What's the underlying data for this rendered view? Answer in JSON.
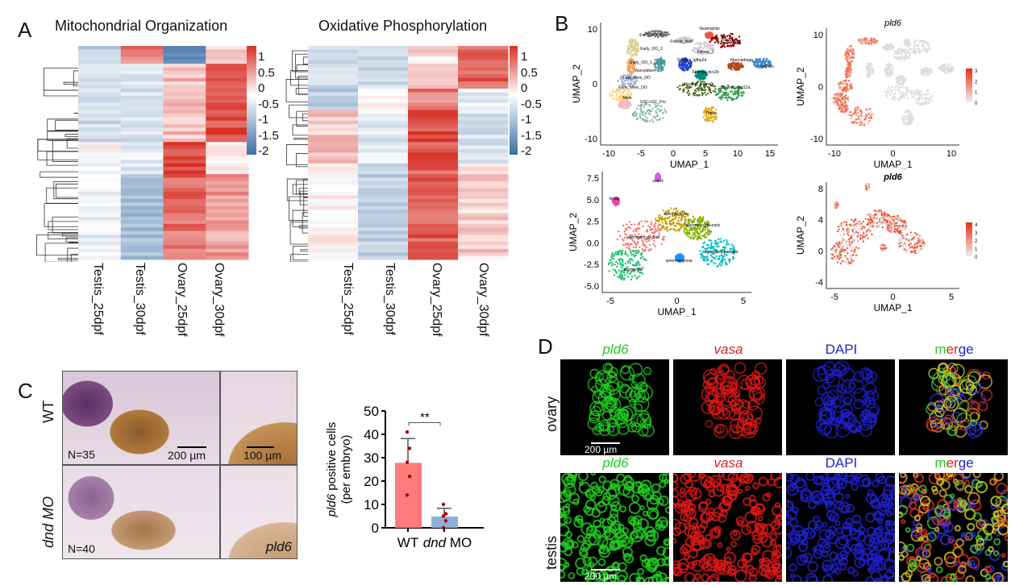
{
  "panels": {
    "a": "A",
    "b": "B",
    "c": "C",
    "d": "D"
  },
  "panel_a": {
    "heatmaps": [
      {
        "title": "Mitochondrial  Organization",
        "columns": [
          "Testis_25dpf",
          "Testis_30dpf",
          "Ovary_25dpf",
          "Ovary_30dpf"
        ]
      },
      {
        "title": "Oxidative  Phosphorylation",
        "columns": [
          "Testis_25dpf",
          "Testis_30dpf",
          "Ovary_25dpf",
          "Ovary_30dpf"
        ]
      }
    ],
    "colorbar_ticks": [
      "1",
      "0.5",
      "0",
      "-0.5",
      "-1",
      "-1.5",
      "-2"
    ],
    "colors": {
      "high": "#d73027",
      "mid": "#ffffff",
      "low": "#3a6ea5"
    }
  },
  "panel_b": {
    "ovary_umap": {
      "xlabel": "UMAP_1",
      "ylabel": "UMAP_2",
      "xticks": [
        "-10",
        "-5",
        "0",
        "5",
        "10",
        "15"
      ],
      "yticks": [
        "10",
        "0",
        "-10"
      ],
      "clusters": [
        "Neutrophils",
        "Early_OO_3",
        "Follicle_lhx9",
        "Follicle_1",
        "Early_OO_2",
        "Follicle_2",
        "Early_OO_1",
        "Stromal_igfbp24",
        "Macrophage",
        "NK-like",
        "Vasculature",
        "Stromal_dcx2b",
        "Late_Meio_OO",
        "Stromal_gramd3",
        "Early_Meio_OO",
        "Stromal_cxcl12a",
        "Meio",
        "GSC+GC_Pro",
        "Theca"
      ]
    },
    "ovary_feature": {
      "title": "pld6",
      "xlabel": "UMAP_1",
      "ylabel": "UMAP_2",
      "xticks": [
        "-10",
        "0",
        "10"
      ],
      "yticks": [
        "10",
        "0",
        "-10"
      ],
      "legend": [
        "3",
        "2",
        "1",
        "0"
      ]
    },
    "testis_umap": {
      "xlabel": "UMAP_1",
      "ylabel": "UMAP_2",
      "xticks": [
        "-5",
        "0",
        "5"
      ],
      "yticks": [
        "7.5",
        "5.0",
        "2.5",
        "0.0",
        "-2.5",
        "-5.0"
      ],
      "clusters": [
        "sertoli",
        "leydig",
        "spermatocyte",
        "spermatocyte-early",
        "spermatocyte-late",
        "spermatogonia-late",
        "spermatogonia",
        "spermatids"
      ]
    },
    "testis_feature": {
      "title": "pld6",
      "xlabel": "UMAP_1",
      "ylabel": "UMAP_2",
      "xticks": [
        "-5",
        "0",
        "5"
      ],
      "yticks": [
        "8",
        "4",
        "0",
        "-4"
      ],
      "legend": [
        "4",
        "3",
        "2",
        "1",
        "0"
      ]
    }
  },
  "panel_c": {
    "row_labels": [
      "WT",
      "dnd MO"
    ],
    "wt_n": "N=35",
    "mo_n": "N=40",
    "scale_200": "200 µm",
    "scale_100": "100 µm",
    "gene": "pld6",
    "ylabel_gene": "pld6",
    "ylabel_rest": " positive cells",
    "ylabel_2": "(per embryo)",
    "significance": "**"
  },
  "chart_data": {
    "type": "bar",
    "categories": [
      "WT",
      "dnd MO"
    ],
    "values": [
      27.8,
      4.8
    ],
    "error_upper": [
      38.2,
      8.3
    ],
    "points": [
      [
        41,
        34,
        28,
        22,
        14
      ],
      [
        10,
        6,
        5,
        3,
        0
      ]
    ],
    "yticks": [
      0,
      10,
      20,
      30,
      40,
      50
    ],
    "ylim": [
      0,
      50
    ],
    "ylabel": "pld6 positive cells (per embryo)",
    "colors": [
      "#ff7b7b",
      "#8fb0d8"
    ]
  },
  "panel_d": {
    "channels": [
      "pld6",
      "vasa",
      "DAPI",
      "merge"
    ],
    "rows": [
      "ovary",
      "testis"
    ],
    "scale": "200 µm"
  }
}
